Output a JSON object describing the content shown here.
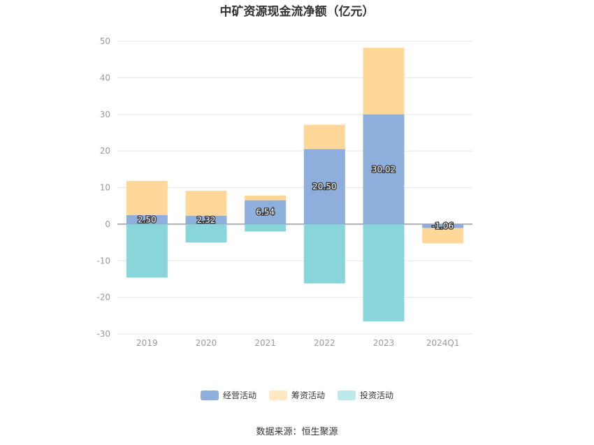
{
  "chart_data": {
    "type": "bar",
    "stacked": true,
    "title": "中矿资源现金流净额（亿元）",
    "categories": [
      "2019",
      "2020",
      "2021",
      "2022",
      "2023",
      "2024Q1"
    ],
    "series": [
      {
        "name": "经营活动",
        "color": "#8eaedb",
        "values": [
          2.5,
          2.32,
          6.54,
          20.5,
          30.02,
          -1.06
        ],
        "labels": [
          "2.50",
          "2.32",
          "6.54",
          "20.50",
          "30.02",
          "-1.06"
        ]
      },
      {
        "name": "筹资活动",
        "color": "#ffd899",
        "values": [
          9.3,
          6.8,
          1.3,
          6.7,
          18.2,
          -4.2
        ]
      },
      {
        "name": "投资活动",
        "color": "#88d6da",
        "values": [
          -14.6,
          -5.0,
          -2.0,
          -16.2,
          -26.6,
          0.0
        ]
      }
    ],
    "ylim": [
      -30,
      50
    ],
    "yticks": [
      50,
      40,
      30,
      20,
      10,
      0,
      -10,
      -20,
      -30
    ],
    "grid": true,
    "legend_position": "bottom"
  },
  "legend_swatch_colors": [
    "#8eaedb",
    "#ffe8c2",
    "#bde9eb"
  ],
  "source": "数据来源：恒生聚源"
}
